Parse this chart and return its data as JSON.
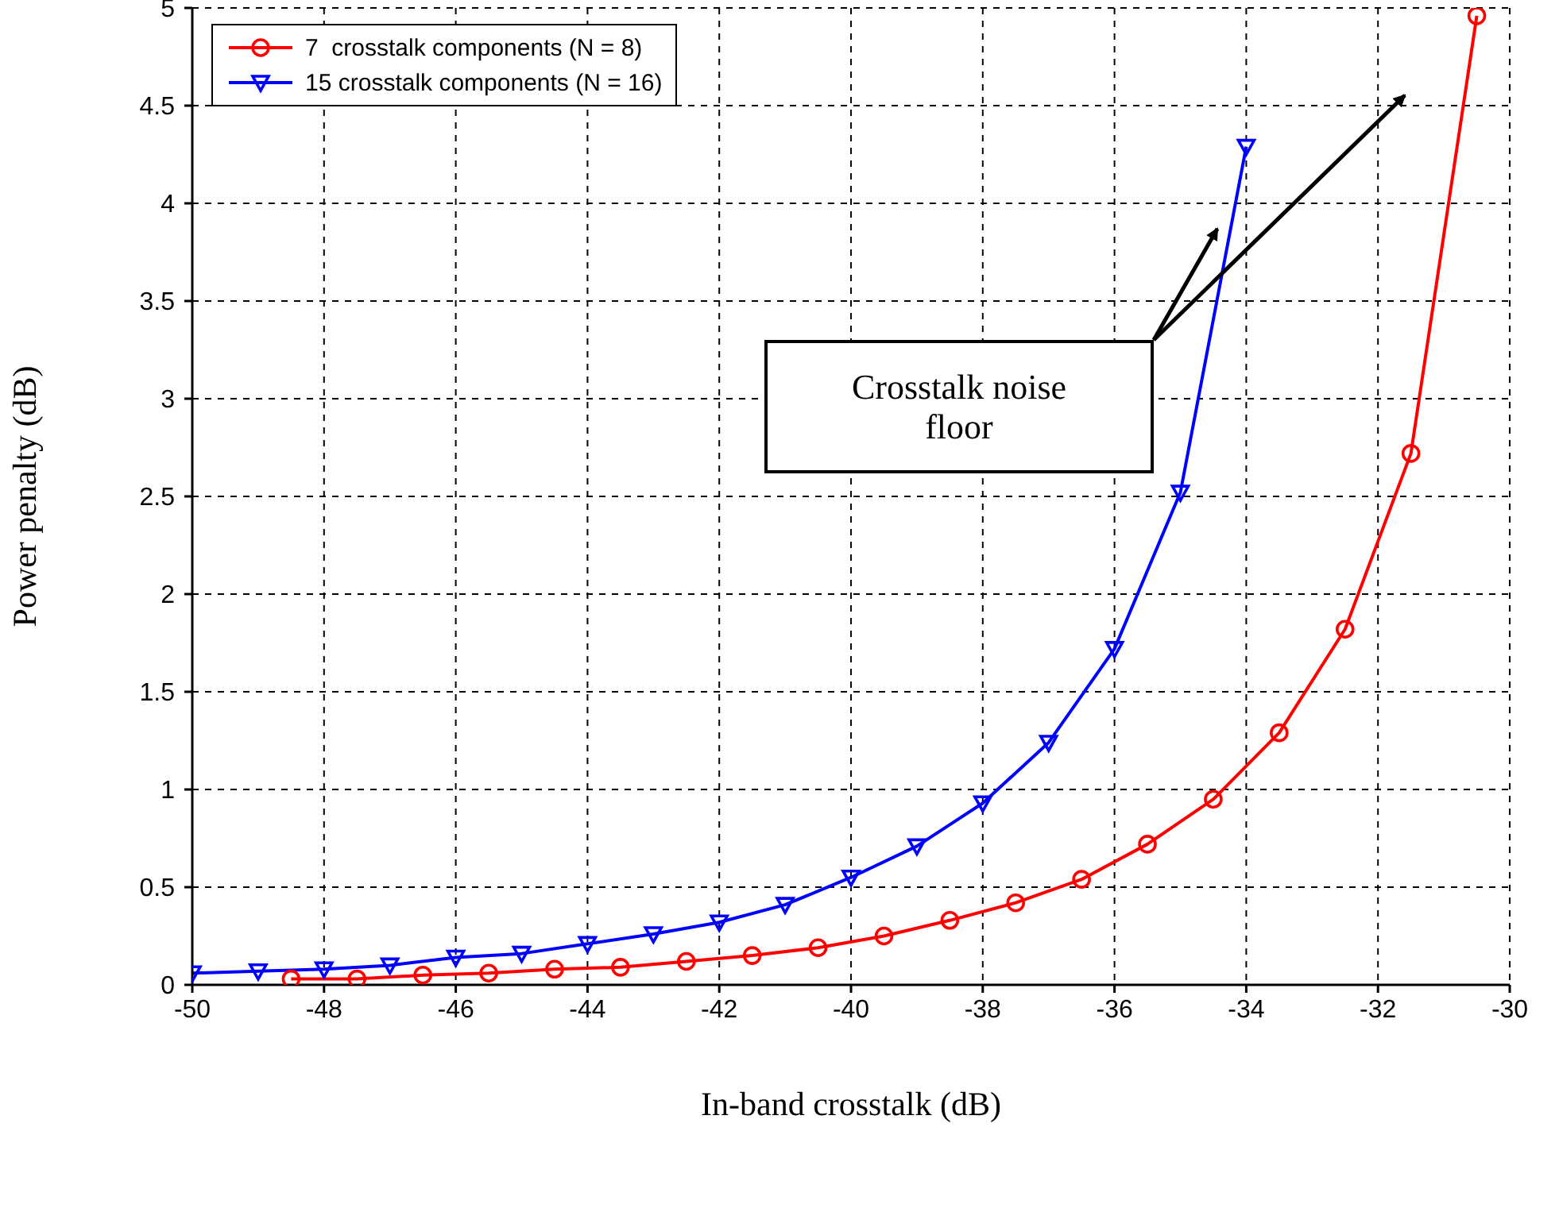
{
  "chart_data": {
    "type": "line",
    "xlabel": "In-band crosstalk (dB)",
    "ylabel": "Power penalty (dB)",
    "xlim": [
      -50,
      -30
    ],
    "xticks": [
      -50,
      -48,
      -46,
      -44,
      -42,
      -40,
      -38,
      -36,
      -34,
      -32,
      -30
    ],
    "ylim": [
      0,
      5
    ],
    "yticks": [
      0,
      0.5,
      1,
      1.5,
      2,
      2.5,
      3,
      3.5,
      4,
      4.5,
      5
    ],
    "grid": true,
    "legend": "top left",
    "annotations": [
      "Crosstalk noise floor"
    ],
    "series": [
      {
        "name": "7  crosstalk components (N = 8)",
        "color": "#ff0000",
        "marker": "circle",
        "x": [
          -48.5,
          -47.5,
          -46.5,
          -45.5,
          -44.5,
          -43.5,
          -42.5,
          -41.5,
          -40.5,
          -39.5,
          -38.5,
          -37.5,
          -36.5,
          -35.5,
          -34.5,
          -33.5,
          -32.5,
          -31.5,
          -30.5
        ],
        "values": [
          0.03,
          0.03,
          0.05,
          0.06,
          0.08,
          0.09,
          0.12,
          0.15,
          0.19,
          0.25,
          0.33,
          0.42,
          0.54,
          0.72,
          0.95,
          1.29,
          1.82,
          2.72,
          4.96
        ]
      },
      {
        "name": "15 crosstalk components (N = 16)",
        "color": "#0000ff",
        "marker": "triangle",
        "x": [
          -50,
          -49,
          -48,
          -47,
          -46,
          -45,
          -44,
          -43,
          -42,
          -41,
          -40,
          -39,
          -38,
          -37,
          -36,
          -35,
          -34
        ],
        "values": [
          0.06,
          0.07,
          0.08,
          0.1,
          0.14,
          0.16,
          0.21,
          0.26,
          0.32,
          0.41,
          0.55,
          0.71,
          0.93,
          1.24,
          1.72,
          2.52,
          4.29
        ]
      }
    ]
  }
}
